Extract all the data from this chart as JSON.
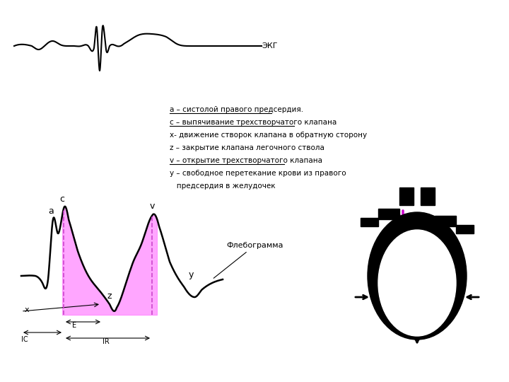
{
  "bg_color": "#ffffff",
  "ecg_label": "ЭКГ",
  "phlebogram_label": "Флебограмма",
  "legend_lines": [
    "а – систолой правого предсердия.",
    "с – выпячивание трехстворчатого клапана",
    "х- движение створок клапана в обратную сторону",
    "z – закрытие клапана легочного ствола",
    "v – открытие трехстворчатого клапана",
    "у – свободное перетекание крови из правого\n   предсердия в желудочек"
  ],
  "legend_underline": [
    0,
    1,
    4
  ],
  "pink_color": "#ff80ff",
  "arrow_color": "#cc00cc",
  "text_color": "#000000",
  "line_color": "#000000",
  "dashed_color": "#cc44cc"
}
